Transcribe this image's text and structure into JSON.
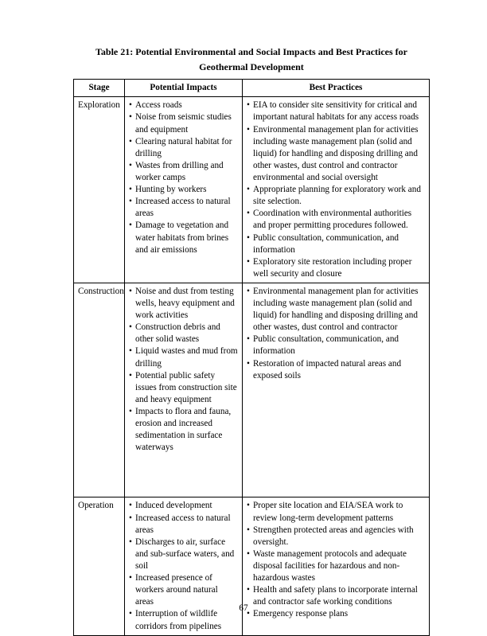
{
  "title_line1": "Table 21: Potential Environmental and Social Impacts and Best Practices for",
  "title_line2": "Geothermal Development",
  "headers": {
    "stage": "Stage",
    "impacts": "Potential Impacts",
    "practices": "Best Practices"
  },
  "rows": [
    {
      "stage": "Exploration",
      "impacts": [
        "Access roads",
        "Noise from seismic studies and equipment",
        "Clearing natural habitat for drilling",
        "Wastes from drilling and worker camps",
        "Hunting by workers",
        "Increased access to natural areas",
        "Damage to vegetation and water habitats from brines and air emissions"
      ],
      "practices": [
        "EIA to consider site sensitivity for critical and important natural habitats for any access roads",
        "Environmental management plan for activities including waste management plan (solid and liquid) for handling and disposing drilling and other wastes, dust control and contractor environmental and social oversight",
        "Appropriate planning for exploratory work and site selection.",
        "Coordination with environmental authorities and proper permitting procedures followed.",
        "Public consultation, communication, and information",
        "Exploratory site restoration including proper well security and closure"
      ]
    },
    {
      "stage": "Construction",
      "impacts": [
        "Noise and dust from testing wells, heavy equipment and work activities",
        "Construction debris and other solid wastes",
        "Liquid wastes and mud from drilling",
        "Potential public safety issues from construction site and heavy equipment",
        "Impacts to flora and fauna, erosion and increased sedimentation in surface waterways"
      ],
      "practices": [
        "Environmental management plan for activities including waste management plan (solid and liquid) for handling and disposing drilling and other wastes, dust control and contractor",
        "Public consultation, communication, and information",
        "Restoration of impacted natural areas and exposed soils"
      ]
    },
    {
      "stage": "Operation",
      "impacts": [
        "Induced development",
        "Increased access to natural areas",
        "Discharges to air, surface and sub-surface waters, and soil",
        "Increased presence of workers around natural areas",
        "Interruption of wildlife corridors from pipelines"
      ],
      "practices": [
        "Proper site location and EIA/SEA work to review long-term development patterns",
        "Strengthen protected areas and agencies with oversight.",
        "Waste management protocols and adequate disposal facilities for hazardous and non-hazardous wastes",
        "Health and safety plans to incorporate internal and contractor safe working conditions",
        "Emergency response plans"
      ]
    }
  ],
  "page_number": "67"
}
